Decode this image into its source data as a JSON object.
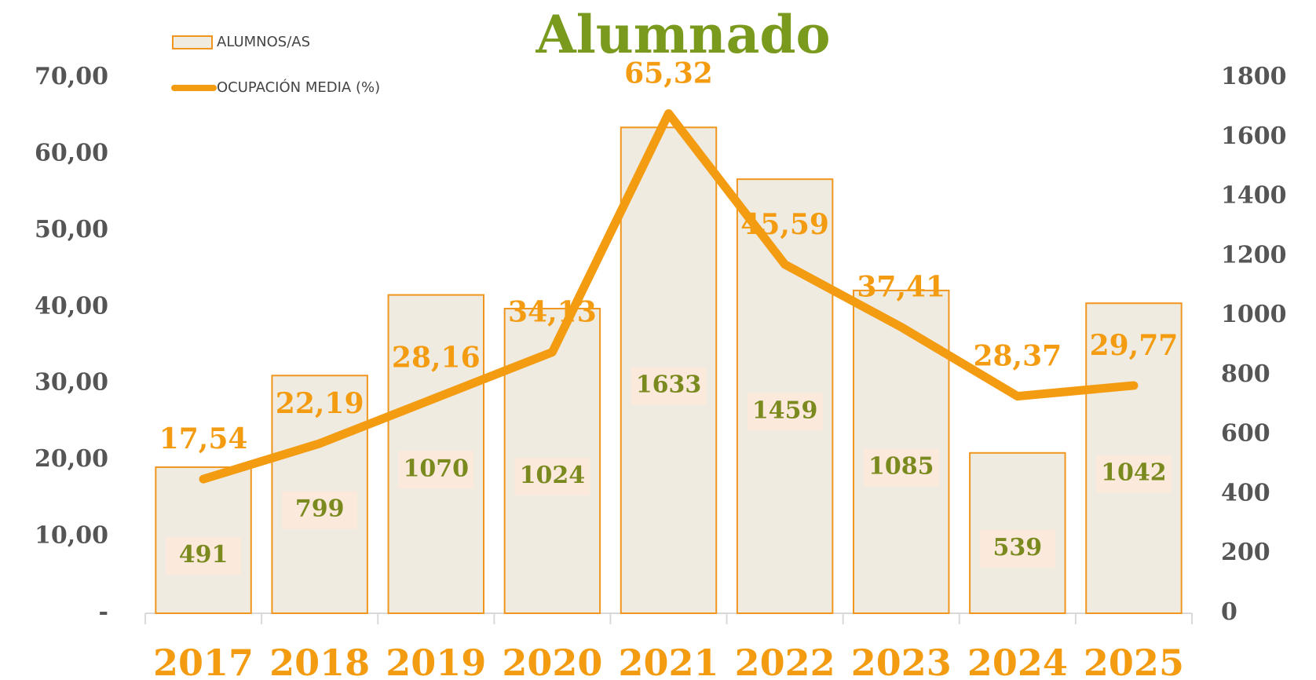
{
  "chart_data": {
    "type": "bar_line",
    "title": "Alumnado",
    "categories": [
      "2017",
      "2018",
      "2019",
      "2020",
      "2021",
      "2022",
      "2023",
      "2024",
      "2025"
    ],
    "series": [
      {
        "name": "ALUMNOS/AS",
        "type": "bar",
        "axis": "y2",
        "color": "#efebe0",
        "edgecolor": "#f0961e",
        "values": [
          491,
          799,
          1070,
          1024,
          1633,
          1459,
          1085,
          539,
          1042
        ]
      },
      {
        "name": "OCUPACIÓN MEDIA (%)",
        "type": "line",
        "axis": "y",
        "color": "#f39c12",
        "values": [
          17.54,
          22.19,
          28.16,
          34.13,
          65.32,
          45.59,
          37.41,
          28.37,
          29.77
        ],
        "value_labels": [
          "17,54",
          "22,19",
          "28,16",
          "34,13",
          "65,32",
          "45,59",
          "37,41",
          "28,37",
          "29,77"
        ]
      }
    ],
    "ylim": [
      0,
      70
    ],
    "yticks": [
      {
        "value": 0,
        "label": "-"
      },
      {
        "value": 10,
        "label": "10,00"
      },
      {
        "value": 20,
        "label": "20,00"
      },
      {
        "value": 30,
        "label": "30,00"
      },
      {
        "value": 40,
        "label": "40,00"
      },
      {
        "value": 50,
        "label": "50,00"
      },
      {
        "value": 60,
        "label": "60,00"
      },
      {
        "value": 70,
        "label": "70,00"
      }
    ],
    "y2lim": [
      0,
      1800
    ],
    "y2ticks": [
      0,
      200,
      400,
      600,
      800,
      1000,
      1200,
      1400,
      1600,
      1800
    ],
    "legend": "upper left"
  }
}
